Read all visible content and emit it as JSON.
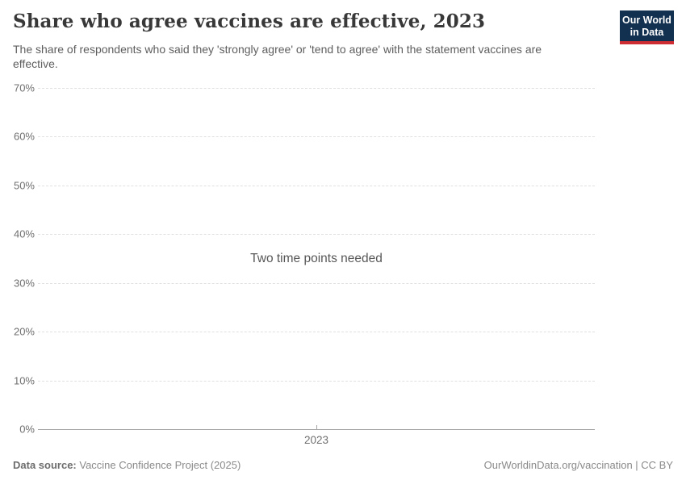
{
  "header": {
    "title": "Share who agree vaccines are effective, 2023",
    "subtitle": "The share of respondents who said they 'strongly agree' or 'tend to agree' with the statement vaccines are effective.",
    "logo": {
      "line1": "Our World",
      "line2": "in Data"
    }
  },
  "chart_data": {
    "type": "line",
    "title": "Share who agree vaccines are effective, 2023",
    "empty_message": "Two time points needed",
    "series": [],
    "x_ticks": [
      "2023"
    ],
    "y_ticks": [
      "70%",
      "60%",
      "50%",
      "40%",
      "30%",
      "20%",
      "10%",
      "0%"
    ],
    "ylim": [
      0,
      70
    ],
    "ylabel": "",
    "xlabel": "",
    "grid": "horizontal-dashed",
    "legend": "none"
  },
  "footer": {
    "datasource_label": "Data source:",
    "datasource_value": " Vaccine Confidence Project (2025)",
    "url_text": "OurWorldinData.org/vaccination | CC BY"
  },
  "colors": {
    "logo_bg": "#12304f",
    "logo_bar": "#cf2d34",
    "title_text": "#383838",
    "subtitle_text": "#5e5e5e",
    "tick_text": "#6f6f6f",
    "gridline": "#e0e0e0",
    "axis_line": "#a5a5a5",
    "background": "#ffffff"
  }
}
